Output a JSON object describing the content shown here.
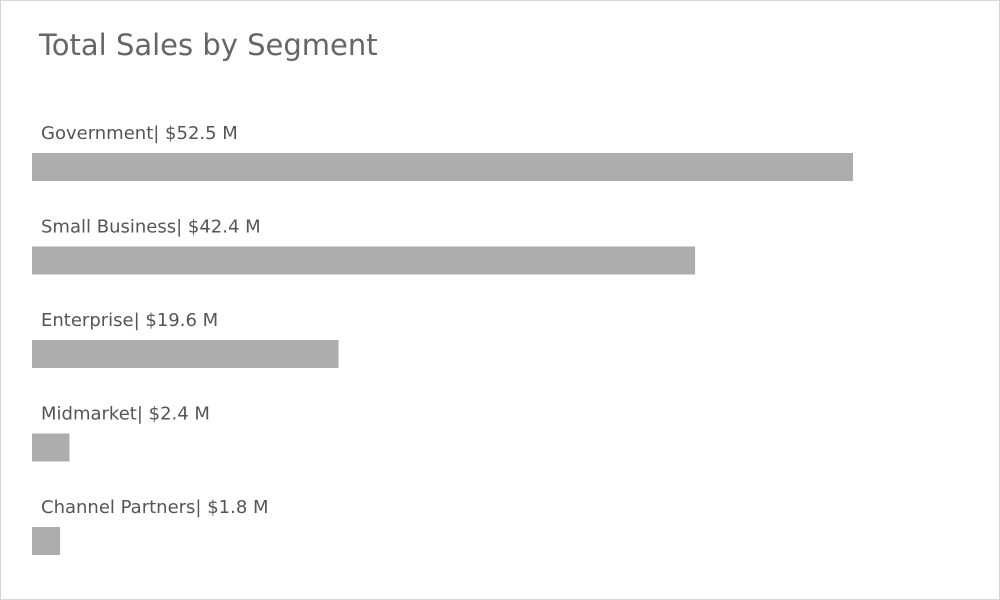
{
  "chart_data": {
    "type": "bar",
    "orientation": "horizontal",
    "title": "Total Sales by Segment",
    "categories": [
      "Government",
      "Small Business",
      "Enterprise",
      "Midmarket",
      "Channel Partners"
    ],
    "values": [
      52.5,
      42.4,
      19.6,
      2.4,
      1.8
    ],
    "labels": [
      "Government| $52.5 M",
      "Small Business| $42.4 M",
      "Enterprise| $19.6 M",
      "Midmarket| $2.4 M",
      "Channel Partners| $1.8 M"
    ],
    "unit": "$M",
    "xlim": [
      0,
      52.5
    ],
    "grid": false,
    "legend": "none",
    "bar_color": "#adadad"
  }
}
